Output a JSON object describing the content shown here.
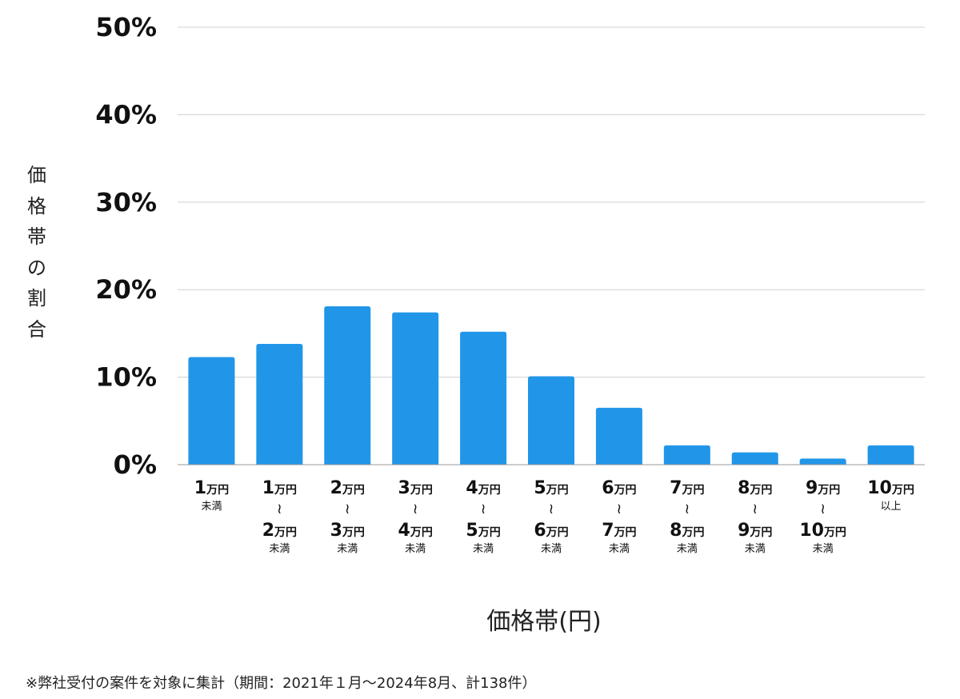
{
  "chart_data": {
    "type": "bar",
    "categories": [
      {
        "lines": [
          {
            "num": "1",
            "unit": "万円"
          }
        ],
        "sub": "未満"
      },
      {
        "lines": [
          {
            "num": "1",
            "unit": "万円"
          },
          {
            "num": "2",
            "unit": "万円"
          }
        ],
        "sub": "未満"
      },
      {
        "lines": [
          {
            "num": "2",
            "unit": "万円"
          },
          {
            "num": "3",
            "unit": "万円"
          }
        ],
        "sub": "未満"
      },
      {
        "lines": [
          {
            "num": "3",
            "unit": "万円"
          },
          {
            "num": "4",
            "unit": "万円"
          }
        ],
        "sub": "未満"
      },
      {
        "lines": [
          {
            "num": "4",
            "unit": "万円"
          },
          {
            "num": "5",
            "unit": "万円"
          }
        ],
        "sub": "未満"
      },
      {
        "lines": [
          {
            "num": "5",
            "unit": "万円"
          },
          {
            "num": "6",
            "unit": "万円"
          }
        ],
        "sub": "未満"
      },
      {
        "lines": [
          {
            "num": "6",
            "unit": "万円"
          },
          {
            "num": "7",
            "unit": "万円"
          }
        ],
        "sub": "未満"
      },
      {
        "lines": [
          {
            "num": "7",
            "unit": "万円"
          },
          {
            "num": "8",
            "unit": "万円"
          }
        ],
        "sub": "未満"
      },
      {
        "lines": [
          {
            "num": "8",
            "unit": "万円"
          },
          {
            "num": "9",
            "unit": "万円"
          }
        ],
        "sub": "未満"
      },
      {
        "lines": [
          {
            "num": "9",
            "unit": "万円"
          },
          {
            "num": "10",
            "unit": "万円"
          }
        ],
        "sub": "未満"
      },
      {
        "lines": [
          {
            "num": "10",
            "unit": "万円"
          }
        ],
        "sub": "以上"
      }
    ],
    "values": [
      12.3,
      13.8,
      18.1,
      17.4,
      15.2,
      10.1,
      6.5,
      2.2,
      1.4,
      0.7,
      2.2
    ],
    "y_ticks": [
      "0%",
      "10%",
      "20%",
      "30%",
      "40%",
      "50%"
    ],
    "ylim": [
      0,
      50
    ],
    "ylabel": "価格帯の割合",
    "xlabel": "価格帯(円)",
    "grid": true,
    "bar_color": "#2196e8",
    "grid_color": "#d0d0d0",
    "tilde_symbol": "≀"
  },
  "footnote": "※弊社受付の案件を対象に集計（期間：2021年１月〜2024年8月、計138件）"
}
